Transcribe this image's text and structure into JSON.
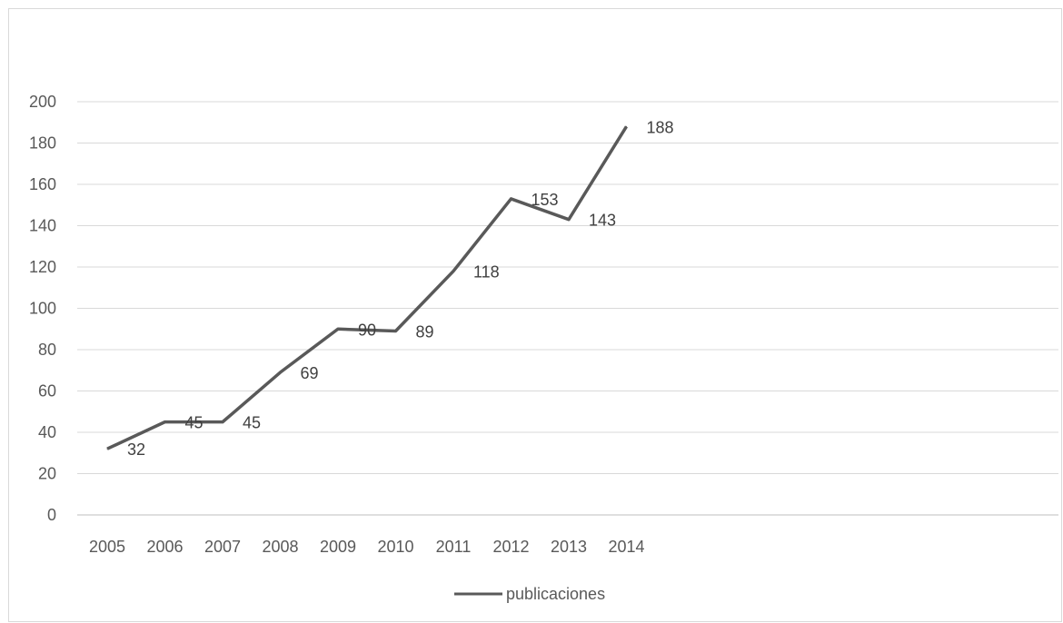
{
  "chart_data": {
    "type": "line",
    "title": "",
    "xlabel": "",
    "ylabel": "",
    "categories": [
      "2005",
      "2006",
      "2007",
      "2008",
      "2009",
      "2010",
      "2011",
      "2012",
      "2013",
      "2014"
    ],
    "series": [
      {
        "name": "publicaciones",
        "values": [
          32,
          45,
          45,
          69,
          90,
          89,
          118,
          153,
          143,
          188
        ],
        "color": "#595959"
      }
    ],
    "ylim": [
      0,
      200
    ],
    "yticks": [
      "0",
      "20",
      "40",
      "60",
      "80",
      "100",
      "120",
      "140",
      "160",
      "180",
      "200"
    ],
    "data_labels": [
      "32",
      "45",
      "45",
      "69",
      "90",
      "89",
      "118",
      "153",
      "143",
      "188"
    ],
    "grid": true,
    "legend_position": "bottom",
    "colors": {
      "line": "#595959",
      "grid": "#d9d9d9",
      "axis": "#bfbfbf",
      "text": "#595959"
    }
  }
}
